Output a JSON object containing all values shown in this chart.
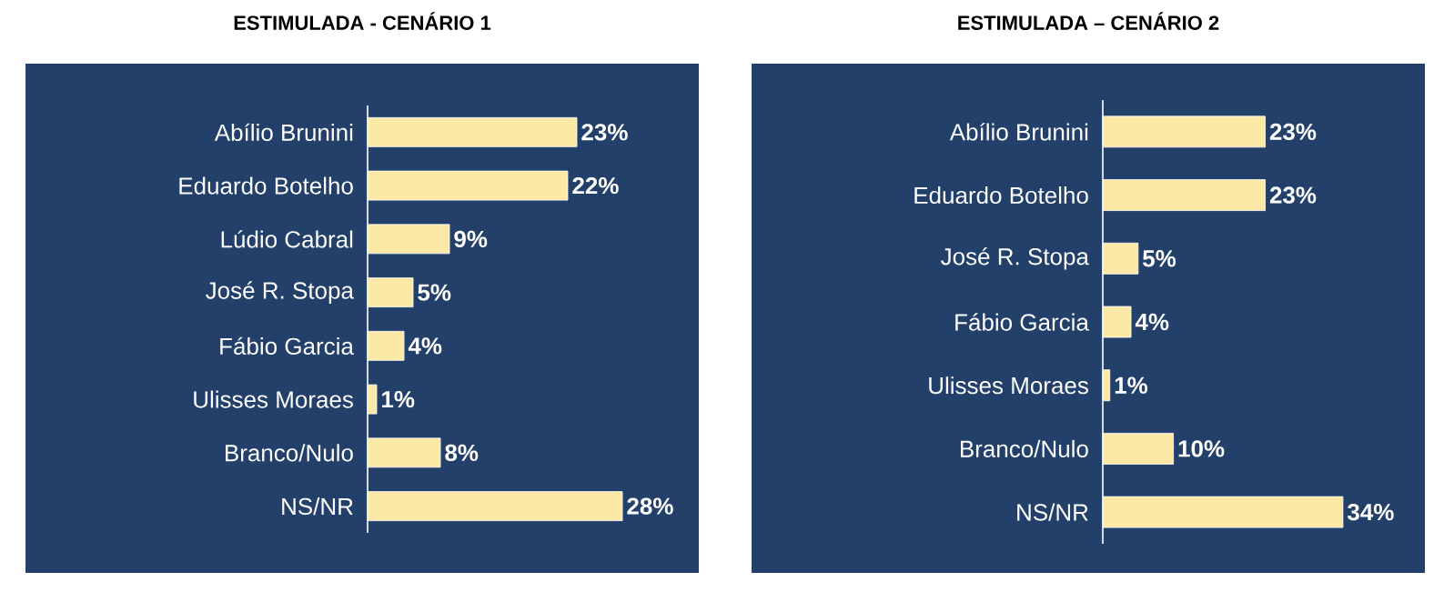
{
  "chart_data": [
    {
      "type": "bar",
      "orientation": "horizontal",
      "title": "ESTIMULADA - CENÁRIO 1",
      "categories": [
        "Abílio Brunini",
        "Eduardo Botelho",
        "Lúdio Cabral",
        "José R. Stopa",
        "Fábio Garcia",
        "Ulisses Moraes",
        "Branco/Nulo",
        "NS/NR"
      ],
      "values": [
        23,
        22,
        9,
        5,
        4,
        1,
        8,
        28
      ],
      "value_labels": [
        "23%",
        "22%",
        "9%",
        "5%",
        "4%",
        "1%",
        "8%",
        "28%"
      ],
      "color": "#fde9a6",
      "tick_labels": "y"
    },
    {
      "type": "bar",
      "orientation": "horizontal",
      "title": "ESTIMULADA – CENÁRIO 2",
      "categories": [
        "Abílio Brunini",
        "Eduardo Botelho",
        "José R. Stopa",
        "Fábio Garcia",
        "Ulisses Moraes",
        "Branco/Nulo",
        "NS/NR"
      ],
      "values": [
        23,
        23,
        5,
        4,
        1,
        10,
        34
      ],
      "value_labels": [
        "23%",
        "23%",
        "5%",
        "4%",
        "1%",
        "10%",
        "34%"
      ],
      "color": "#fde9a6",
      "tick_labels": "y"
    }
  ]
}
